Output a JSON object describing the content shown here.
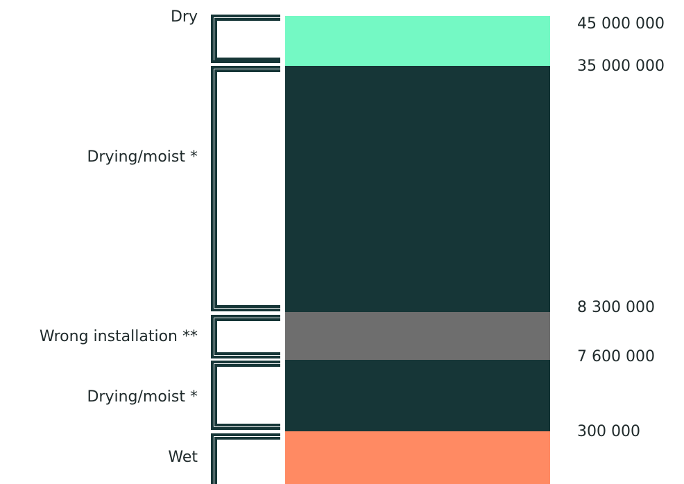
{
  "scale": {
    "boundaries": [
      "45 000 000",
      "35 000 000",
      "8 300 000",
      "7 600 000",
      "300 000"
    ]
  },
  "zones": [
    {
      "label": "Dry",
      "color": "#74f9c4"
    },
    {
      "label": "Drying/moist *",
      "color": "#163637"
    },
    {
      "label": "Wrong installation **",
      "color": "#6e6e6e"
    },
    {
      "label": "Drying/moist *",
      "color": "#163637"
    },
    {
      "label": "Wet",
      "color": "#ff8a63"
    }
  ],
  "colors": {
    "bracket": "#163637",
    "text": "#1f2a2b"
  }
}
